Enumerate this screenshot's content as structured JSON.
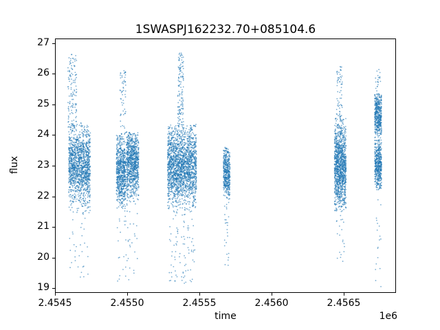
{
  "chart_data": {
    "type": "scatter",
    "title": "1SWASPJ162232.70+085104.6",
    "xlabel": "time",
    "ylabel": "flux",
    "offset_text": "1e6",
    "xlim": [
      2454500,
      2456862
    ],
    "ylim": [
      18.85,
      27.15
    ],
    "xticks": [
      2454500,
      2455000,
      2455500,
      2456000,
      2456500
    ],
    "xtick_labels": [
      "2.4545",
      "2.4550",
      "2.4555",
      "2.4560",
      "2.4565"
    ],
    "yticks": [
      19,
      20,
      21,
      22,
      23,
      24,
      25,
      26,
      27
    ],
    "ytick_labels": [
      "19",
      "20",
      "21",
      "22",
      "23",
      "24",
      "25",
      "26",
      "27"
    ],
    "grid": false,
    "legend": "none",
    "marker": {
      "color_rgb": [
        31,
        119,
        180
      ],
      "alpha": 0.6,
      "radius": 0.9
    },
    "groups": [
      {
        "x_range": [
          2454595,
          2454745
        ],
        "n": 1400,
        "y_dist": "normal",
        "y_mu": 23.0,
        "y_sigma": 0.65,
        "y_clip": [
          21.4,
          24.4
        ]
      },
      {
        "x_range": [
          2454590,
          2454650
        ],
        "n": 130,
        "y_dist": "uniform",
        "y_range": [
          24.2,
          26.65
        ]
      },
      {
        "x_range": [
          2454600,
          2454730
        ],
        "n": 30,
        "y_dist": "uniform",
        "y_range": [
          19.3,
          21.4
        ]
      },
      {
        "x_range": [
          2454925,
          2454990
        ],
        "n": 700,
        "y_dist": "normal",
        "y_mu": 22.8,
        "y_sigma": 0.6,
        "y_clip": [
          21.6,
          24.0
        ]
      },
      {
        "x_range": [
          2454995,
          2455080
        ],
        "n": 900,
        "y_dist": "normal",
        "y_mu": 23.1,
        "y_sigma": 0.55,
        "y_clip": [
          21.7,
          24.1
        ]
      },
      {
        "x_range": [
          2454950,
          2454990
        ],
        "n": 60,
        "y_dist": "uniform",
        "y_range": [
          24.0,
          26.1
        ]
      },
      {
        "x_range": [
          2454930,
          2455075
        ],
        "n": 45,
        "y_dist": "uniform",
        "y_range": [
          19.2,
          21.6
        ]
      },
      {
        "x_range": [
          2455280,
          2455480
        ],
        "n": 2000,
        "y_dist": "normal",
        "y_mu": 23.0,
        "y_sigma": 0.65,
        "y_clip": [
          21.5,
          24.35
        ]
      },
      {
        "x_range": [
          2455350,
          2455390
        ],
        "n": 130,
        "y_dist": "uniform",
        "y_range": [
          24.3,
          26.7
        ]
      },
      {
        "x_range": [
          2455290,
          2455470
        ],
        "n": 90,
        "y_dist": "uniform",
        "y_range": [
          19.1,
          21.5
        ]
      },
      {
        "x_range": [
          2455666,
          2455712
        ],
        "n": 450,
        "y_dist": "normal",
        "y_mu": 22.8,
        "y_sigma": 0.45,
        "y_clip": [
          21.8,
          23.6
        ]
      },
      {
        "x_range": [
          2455670,
          2455705
        ],
        "n": 25,
        "y_dist": "uniform",
        "y_range": [
          19.7,
          21.8
        ]
      },
      {
        "x_range": [
          2456436,
          2456516
        ],
        "n": 1200,
        "y_dist": "normal",
        "y_mu": 23.0,
        "y_sigma": 0.75,
        "y_clip": [
          21.5,
          24.6
        ]
      },
      {
        "x_range": [
          2456450,
          2456490
        ],
        "n": 60,
        "y_dist": "uniform",
        "y_range": [
          24.6,
          26.25
        ]
      },
      {
        "x_range": [
          2456445,
          2456505
        ],
        "n": 20,
        "y_dist": "uniform",
        "y_range": [
          19.8,
          21.5
        ]
      },
      {
        "x_range": [
          2456714,
          2456762
        ],
        "n": 500,
        "y_dist": "normal",
        "y_mu": 23.0,
        "y_sigma": 0.45,
        "y_clip": [
          22.2,
          23.9
        ]
      },
      {
        "x_range": [
          2456714,
          2456762
        ],
        "n": 450,
        "y_dist": "normal",
        "y_mu": 24.7,
        "y_sigma": 0.4,
        "y_clip": [
          23.9,
          25.35
        ]
      },
      {
        "x_range": [
          2456720,
          2456755
        ],
        "n": 20,
        "y_dist": "uniform",
        "y_range": [
          25.35,
          26.15
        ]
      },
      {
        "x_range": [
          2456720,
          2456760
        ],
        "n": 18,
        "y_dist": "uniform",
        "y_range": [
          18.9,
          21.9
        ]
      }
    ]
  }
}
